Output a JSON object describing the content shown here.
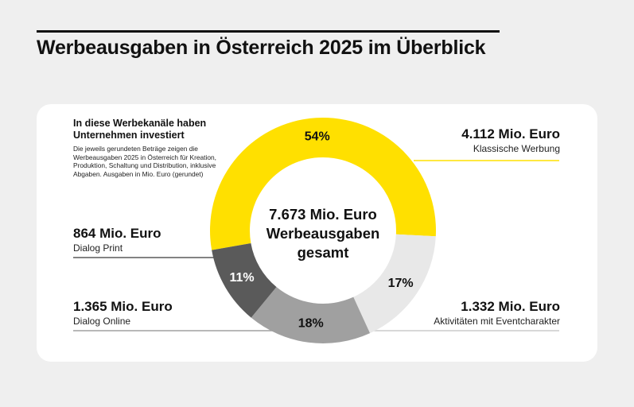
{
  "title": "Werbeausgaben in Österreich 2025 im Überblick",
  "intro": {
    "heading": "In diese Werbekanäle haben Unternehmen investiert",
    "text": "Die jeweils gerundeten Beträge zeigen die Werbeausgaben 2025 in Österreich für Kreation, Produktion, Schaltung und Distribution, inklusive Abgaben. Ausgaben in Mio. Euro (gerundet)"
  },
  "center": {
    "line1": "7.673 Mio. Euro",
    "line2": "Werbeausgaben",
    "line3": "gesamt"
  },
  "callouts": {
    "klassisch": {
      "value": "4.112 Mio. Euro",
      "label": "Klassische Werbung"
    },
    "event": {
      "value": "1.332 Mio. Euro",
      "label": "Aktivitäten mit Eventcharakter"
    },
    "online": {
      "value": "1.365 Mio. Euro",
      "label": "Dialog Online"
    },
    "print": {
      "value": "864 Mio. Euro",
      "label": "Dialog Print"
    }
  },
  "chart_data": {
    "type": "pie",
    "categories": [
      "Klassische Werbung",
      "Aktivitäten mit Eventcharakter",
      "Dialog Online",
      "Dialog Print"
    ],
    "values": [
      4112,
      1332,
      1365,
      864
    ],
    "percent_labels": [
      "54%",
      "17%",
      "18%",
      "11%"
    ],
    "total": 7673,
    "colors": [
      "#ffe000",
      "#e8e8e8",
      "#a0a0a0",
      "#5a5a5a"
    ],
    "leader_colors": [
      "#ffe000",
      "#cccccc",
      "#a0a0a0",
      "#5a5a5a"
    ]
  }
}
